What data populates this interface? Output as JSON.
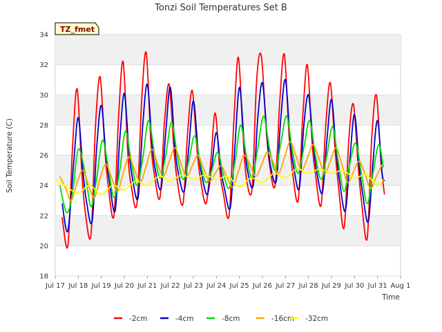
{
  "chart_data": {
    "type": "line",
    "title": "Tonzi Soil Temperatures Set B",
    "xlabel": "Time",
    "ylabel": "Soil Temperature (C)",
    "badge": "TZ_fmet",
    "xlim": [
      17,
      32
    ],
    "ylim": [
      18,
      34
    ],
    "x_ticks": [
      {
        "v": 17,
        "label": "Jul 17"
      },
      {
        "v": 18,
        "label": "Jul 18"
      },
      {
        "v": 19,
        "label": "Jul 19"
      },
      {
        "v": 20,
        "label": "Jul 20"
      },
      {
        "v": 21,
        "label": "Jul 21"
      },
      {
        "v": 22,
        "label": "Jul 22"
      },
      {
        "v": 23,
        "label": "Jul 23"
      },
      {
        "v": 24,
        "label": "Jul 24"
      },
      {
        "v": 25,
        "label": "Jul 25"
      },
      {
        "v": 26,
        "label": "Jul 26"
      },
      {
        "v": 27,
        "label": "Jul 27"
      },
      {
        "v": 28,
        "label": "Jul 28"
      },
      {
        "v": 29,
        "label": "Jul 29"
      },
      {
        "v": 30,
        "label": "Jul 30"
      },
      {
        "v": 31,
        "label": "Jul 31"
      },
      {
        "v": 32,
        "label": "Aug 1"
      }
    ],
    "y_ticks": [
      18,
      20,
      22,
      24,
      26,
      28,
      30,
      32,
      34
    ],
    "grid": true,
    "legend_position": "bottom",
    "series": [
      {
        "name": "-2cm",
        "color": "#ff0000",
        "x": [
          17.3,
          17.55,
          17.75,
          17.95,
          18.15,
          18.3,
          18.55,
          18.75,
          18.95,
          19.15,
          19.3,
          19.55,
          19.75,
          19.95,
          20.15,
          20.3,
          20.55,
          20.75,
          20.95,
          21.15,
          21.3,
          21.55,
          21.75,
          21.95,
          22.15,
          22.3,
          22.55,
          22.75,
          22.95,
          23.15,
          23.3,
          23.55,
          23.75,
          23.95,
          24.15,
          24.3,
          24.55,
          24.75,
          24.95,
          25.15,
          25.3,
          25.55,
          25.75,
          25.95,
          26.15,
          26.3,
          26.55,
          26.75,
          26.95,
          27.15,
          27.3,
          27.55,
          27.75,
          27.95,
          28.15,
          28.3,
          28.55,
          28.75,
          28.95,
          29.15,
          29.3,
          29.55,
          29.75,
          29.95,
          30.15,
          30.3,
          30.55,
          30.75,
          30.95,
          31.15,
          31.3
        ],
        "y": [
          21.9,
          20.0,
          26.5,
          30.4,
          25.0,
          22.3,
          20.7,
          28.0,
          31.2,
          26.5,
          24.0,
          22.0,
          28.5,
          32.2,
          26.2,
          24.0,
          22.8,
          29.5,
          32.8,
          27.0,
          24.8,
          23.2,
          28.3,
          30.7,
          26.5,
          24.3,
          22.8,
          27.5,
          30.3,
          26.5,
          24.5,
          22.8,
          25.5,
          28.8,
          25.0,
          23.5,
          22.0,
          28.0,
          32.5,
          27.5,
          24.5,
          23.8,
          31.0,
          32.6,
          28.0,
          25.5,
          24.0,
          29.5,
          32.7,
          27.5,
          25.0,
          23.0,
          28.5,
          32.0,
          27.0,
          24.8,
          22.7,
          28.0,
          30.8,
          26.5,
          24.0,
          21.2,
          27.0,
          29.4,
          25.5,
          23.0,
          20.5,
          27.2,
          30.0,
          25.5,
          23.4
        ]
      },
      {
        "name": "-4cm",
        "color": "#0000cc",
        "x": [
          17.3,
          17.55,
          17.8,
          18.0,
          18.2,
          18.35,
          18.6,
          18.8,
          19.0,
          19.2,
          19.35,
          19.6,
          19.8,
          20.0,
          20.2,
          20.35,
          20.6,
          20.8,
          21.0,
          21.2,
          21.35,
          21.6,
          21.8,
          22.0,
          22.2,
          22.35,
          22.6,
          22.8,
          23.0,
          23.2,
          23.35,
          23.6,
          23.8,
          24.0,
          24.2,
          24.35,
          24.6,
          24.8,
          25.0,
          25.2,
          25.35,
          25.6,
          25.8,
          26.0,
          26.2,
          26.35,
          26.6,
          26.8,
          27.0,
          27.2,
          27.35,
          27.6,
          27.8,
          28.0,
          28.2,
          28.35,
          28.6,
          28.8,
          29.0,
          29.2,
          29.35,
          29.6,
          29.8,
          30.0,
          30.2,
          30.35,
          30.6,
          30.8,
          31.0,
          31.2,
          31.3
        ],
        "y": [
          22.8,
          21.0,
          25.5,
          28.5,
          25.0,
          23.0,
          21.6,
          26.5,
          29.3,
          26.0,
          24.3,
          22.3,
          27.0,
          30.1,
          26.3,
          24.5,
          23.2,
          28.0,
          30.7,
          26.8,
          25.0,
          23.8,
          27.5,
          30.5,
          26.5,
          24.8,
          23.6,
          26.5,
          29.6,
          26.4,
          24.8,
          23.4,
          25.3,
          27.5,
          25.0,
          23.8,
          22.5,
          26.5,
          30.5,
          27.0,
          25.0,
          24.0,
          28.5,
          30.8,
          27.3,
          25.3,
          24.3,
          28.5,
          31.0,
          27.0,
          25.3,
          23.8,
          28.0,
          30.0,
          26.8,
          25.0,
          23.5,
          27.0,
          29.7,
          26.3,
          24.3,
          22.3,
          25.8,
          28.7,
          25.3,
          23.5,
          21.6,
          25.5,
          28.3,
          24.8,
          24.3
        ]
      },
      {
        "name": "-8cm",
        "color": "#00dd00",
        "x": [
          17.2,
          17.5,
          17.75,
          18.0,
          18.3,
          18.55,
          18.8,
          19.05,
          19.3,
          19.55,
          19.8,
          20.05,
          20.3,
          20.55,
          20.8,
          21.05,
          21.3,
          21.55,
          21.8,
          22.05,
          22.3,
          22.55,
          22.8,
          23.05,
          23.3,
          23.55,
          23.8,
          24.05,
          24.3,
          24.55,
          24.8,
          25.05,
          25.3,
          25.55,
          25.8,
          26.05,
          26.3,
          26.55,
          26.8,
          27.05,
          27.3,
          27.55,
          27.8,
          28.05,
          28.3,
          28.55,
          28.8,
          29.05,
          29.3,
          29.55,
          29.8,
          30.05,
          30.3,
          30.55,
          30.8,
          31.05,
          31.25
        ],
        "y": [
          24.0,
          22.2,
          23.5,
          26.4,
          24.8,
          22.6,
          24.5,
          27.0,
          25.2,
          23.2,
          25.0,
          27.6,
          25.6,
          24.0,
          25.8,
          28.3,
          26.2,
          24.5,
          26.0,
          28.2,
          26.0,
          24.4,
          25.6,
          27.3,
          25.5,
          24.2,
          25.0,
          26.2,
          24.8,
          23.8,
          25.5,
          28.0,
          26.0,
          24.5,
          26.5,
          28.6,
          26.5,
          25.0,
          26.8,
          28.6,
          26.3,
          24.8,
          26.5,
          28.3,
          26.0,
          24.4,
          26.0,
          27.9,
          25.5,
          23.6,
          25.5,
          26.8,
          24.8,
          22.8,
          24.8,
          26.7,
          25.2
        ]
      },
      {
        "name": "-16cm",
        "color": "#ffa500",
        "x": [
          17.2,
          17.45,
          17.7,
          17.95,
          18.2,
          18.45,
          18.7,
          18.95,
          19.2,
          19.45,
          19.7,
          19.95,
          20.2,
          20.45,
          20.7,
          20.95,
          21.2,
          21.45,
          21.7,
          21.95,
          22.2,
          22.45,
          22.7,
          22.95,
          23.2,
          23.45,
          23.7,
          23.95,
          24.2,
          24.45,
          24.7,
          24.95,
          25.2,
          25.45,
          25.7,
          25.95,
          26.2,
          26.45,
          26.7,
          26.95,
          27.2,
          27.45,
          27.7,
          27.95,
          28.2,
          28.45,
          28.7,
          28.95,
          29.2,
          29.45,
          29.7,
          29.95,
          30.2,
          30.45,
          30.7,
          30.95,
          31.2
        ],
        "y": [
          24.6,
          23.8,
          23.0,
          24.2,
          25.0,
          24.0,
          23.2,
          24.5,
          25.4,
          24.5,
          23.6,
          24.8,
          25.9,
          25.0,
          24.2,
          25.3,
          26.4,
          25.4,
          24.6,
          25.6,
          26.5,
          25.5,
          24.6,
          25.3,
          26.0,
          25.1,
          24.3,
          24.8,
          25.3,
          24.6,
          23.9,
          24.9,
          26.0,
          25.4,
          24.6,
          25.3,
          26.2,
          25.6,
          24.8,
          25.8,
          26.9,
          26.0,
          25.0,
          25.8,
          26.7,
          25.8,
          24.8,
          25.6,
          26.5,
          25.4,
          24.2,
          24.9,
          25.6,
          24.8,
          23.8,
          24.6,
          25.4
        ]
      },
      {
        "name": "-32cm",
        "color": "#ffff00",
        "x": [
          17.0,
          17.5,
          18.0,
          18.5,
          19.0,
          19.5,
          20.0,
          20.5,
          21.0,
          21.5,
          22.0,
          22.5,
          23.0,
          23.5,
          24.0,
          24.5,
          25.0,
          25.5,
          26.0,
          26.5,
          27.0,
          27.5,
          28.0,
          28.5,
          29.0,
          29.5,
          30.0,
          30.5,
          31.0,
          31.25
        ],
        "y": [
          24.4,
          23.9,
          23.5,
          24.0,
          23.4,
          24.0,
          23.7,
          24.3,
          24.0,
          24.6,
          24.3,
          24.7,
          24.4,
          24.7,
          24.4,
          24.6,
          23.9,
          24.5,
          24.2,
          24.8,
          24.5,
          25.1,
          24.8,
          25.1,
          24.8,
          25.0,
          24.5,
          24.7,
          24.0,
          24.4
        ]
      }
    ]
  }
}
